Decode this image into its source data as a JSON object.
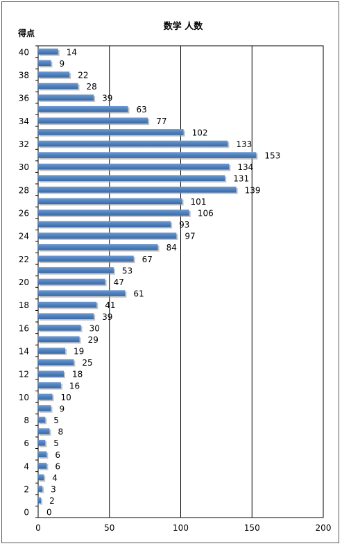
{
  "chart_data": {
    "type": "bar",
    "orientation": "horizontal",
    "title": "数学 人数",
    "ylabel": "得点",
    "xlabel": "",
    "xlim": [
      0,
      200
    ],
    "x_ticks": [
      0,
      50,
      100,
      150,
      200
    ],
    "y_tick_labels": [
      "0",
      "2",
      "4",
      "6",
      "8",
      "10",
      "12",
      "14",
      "16",
      "18",
      "20",
      "22",
      "24",
      "26",
      "28",
      "30",
      "32",
      "34",
      "36",
      "38",
      "40"
    ],
    "categories": [
      0,
      1,
      2,
      3,
      4,
      5,
      6,
      7,
      8,
      9,
      10,
      11,
      12,
      13,
      14,
      15,
      16,
      17,
      18,
      19,
      20,
      21,
      22,
      23,
      24,
      25,
      26,
      27,
      28,
      29,
      30,
      31,
      32,
      33,
      34,
      35,
      36,
      37,
      38,
      39,
      40
    ],
    "values": [
      0,
      2,
      3,
      4,
      6,
      6,
      5,
      8,
      5,
      9,
      10,
      16,
      18,
      25,
      19,
      29,
      30,
      39,
      41,
      61,
      47,
      53,
      67,
      84,
      97,
      93,
      106,
      101,
      139,
      131,
      134,
      153,
      133,
      102,
      77,
      63,
      39,
      28,
      22,
      9,
      14
    ],
    "grid": "vertical",
    "bar_color": "#4f81bd",
    "data_labels": true
  }
}
